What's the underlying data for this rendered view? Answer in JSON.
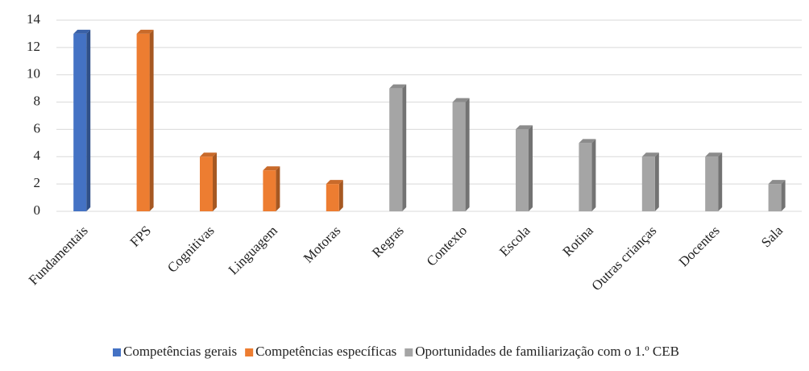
{
  "chart_data": {
    "type": "bar",
    "categories": [
      "Fundamentais",
      "FPS",
      "Cognitivas",
      "Linguagem",
      "Motoras",
      "Regras",
      "Contexto",
      "Escola",
      "Rotina",
      "Outras crianças",
      "Docentes",
      "Sala"
    ],
    "series": [
      {
        "name": "Competências gerais",
        "color": "#4472c4",
        "values": [
          13,
          null,
          null,
          null,
          null,
          null,
          null,
          null,
          null,
          null,
          null,
          null
        ]
      },
      {
        "name": "Competências específicas",
        "color": "#ed7d31",
        "values": [
          null,
          13,
          4,
          3,
          2,
          null,
          null,
          null,
          null,
          null,
          null,
          null
        ]
      },
      {
        "name": "Oportunidades de familiarização com o 1.º CEB",
        "color": "#a5a5a5",
        "values": [
          null,
          null,
          null,
          null,
          null,
          9,
          8,
          6,
          5,
          4,
          4,
          2
        ]
      }
    ],
    "ylim": [
      0,
      14
    ],
    "yticks": [
      0,
      2,
      4,
      6,
      8,
      10,
      12,
      14
    ],
    "grid": true,
    "legend": "bottom"
  }
}
